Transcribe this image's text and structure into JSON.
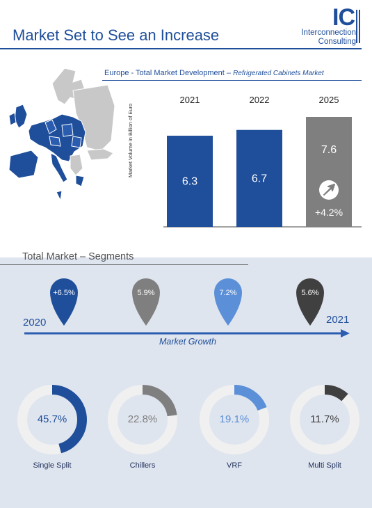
{
  "header": {
    "title": "Market Set to See an Increase",
    "logo": {
      "mark": "IC",
      "line1": "Interconnection",
      "line2": "Consulting"
    }
  },
  "market_chart": {
    "heading_main": "Europe - Total Market Development",
    "heading_dash": "–",
    "heading_sub": "Refrigerated Cabinets Market",
    "growth_label": "+4.2%"
  },
  "segments": {
    "title": "Total Market – Segments",
    "timeline_start": "2020",
    "timeline_end": "2021",
    "timeline_label": "Market Growth",
    "pins": [
      {
        "label": "+6.5%",
        "color": "#1f4e9a"
      },
      {
        "label": "5.9%",
        "color": "#7f7f7f"
      },
      {
        "label": "7.2%",
        "color": "#5b8fd8"
      },
      {
        "label": "5.6%",
        "color": "#404040"
      }
    ],
    "donuts": [
      {
        "name": "Single Split",
        "value": 45.7,
        "label": "45.7%",
        "color": "#1f4e9a"
      },
      {
        "name": "Chillers",
        "value": 22.8,
        "label": "22.8%",
        "color": "#7f7f7f"
      },
      {
        "name": "VRF",
        "value": 19.1,
        "label": "19.1%",
        "color": "#5b8fd8"
      },
      {
        "name": "Multi Split",
        "value": 11.7,
        "label": "11.7%",
        "color": "#404040"
      }
    ]
  },
  "chart_data": [
    {
      "type": "bar",
      "categories": [
        "2021",
        "2022",
        "2025"
      ],
      "values": [
        6.3,
        6.7,
        7.6
      ],
      "value_labels": [
        "6.3",
        "6.7",
        "7.6"
      ],
      "ylabel": "Market Volume in Billion of Euro",
      "colors": [
        "#1f4e9a",
        "#1f4e9a",
        "#7f7f7f"
      ]
    },
    {
      "type": "pie",
      "categories": [
        "Single Split",
        "Chillers",
        "VRF",
        "Multi Split"
      ],
      "values": [
        45.7,
        22.8,
        19.1,
        11.7
      ]
    }
  ]
}
